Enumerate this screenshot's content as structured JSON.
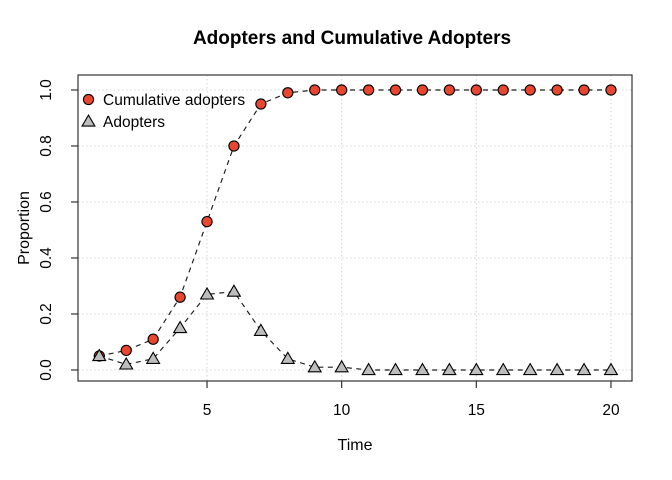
{
  "chart_data": {
    "type": "line",
    "title": "Adopters and Cumulative Adopters",
    "xlabel": "Time",
    "ylabel": "Proportion",
    "x": [
      1,
      2,
      3,
      4,
      5,
      6,
      7,
      8,
      9,
      10,
      11,
      12,
      13,
      14,
      15,
      16,
      17,
      18,
      19,
      20
    ],
    "x_ticks": [
      5,
      10,
      15,
      20
    ],
    "y_ticks": [
      0.0,
      0.2,
      0.4,
      0.6,
      0.8,
      1.0
    ],
    "xlim": [
      0.2,
      20.8
    ],
    "ylim": [
      -0.04,
      1.05
    ],
    "grid": "dotted",
    "grid_color": "#d4d4d4",
    "line_style": "dashed",
    "line_color": "#1c1c1c",
    "marker_outline": "#000000",
    "axis_color": "#333333",
    "legend_position": "top-left",
    "series": [
      {
        "name": "Cumulative adopters",
        "marker": "circle",
        "fill": "#e8462f",
        "values": [
          0.05,
          0.07,
          0.11,
          0.26,
          0.53,
          0.8,
          0.95,
          0.99,
          1.0,
          1.0,
          1.0,
          1.0,
          1.0,
          1.0,
          1.0,
          1.0,
          1.0,
          1.0,
          1.0,
          1.0
        ]
      },
      {
        "name": "Adopters",
        "marker": "triangle",
        "fill": "#bdbdbd",
        "values": [
          0.05,
          0.02,
          0.04,
          0.15,
          0.27,
          0.28,
          0.14,
          0.04,
          0.01,
          0.01,
          0.0,
          0.0,
          0.0,
          0.0,
          0.0,
          0.0,
          0.0,
          0.0,
          0.0,
          0.0
        ]
      }
    ]
  }
}
